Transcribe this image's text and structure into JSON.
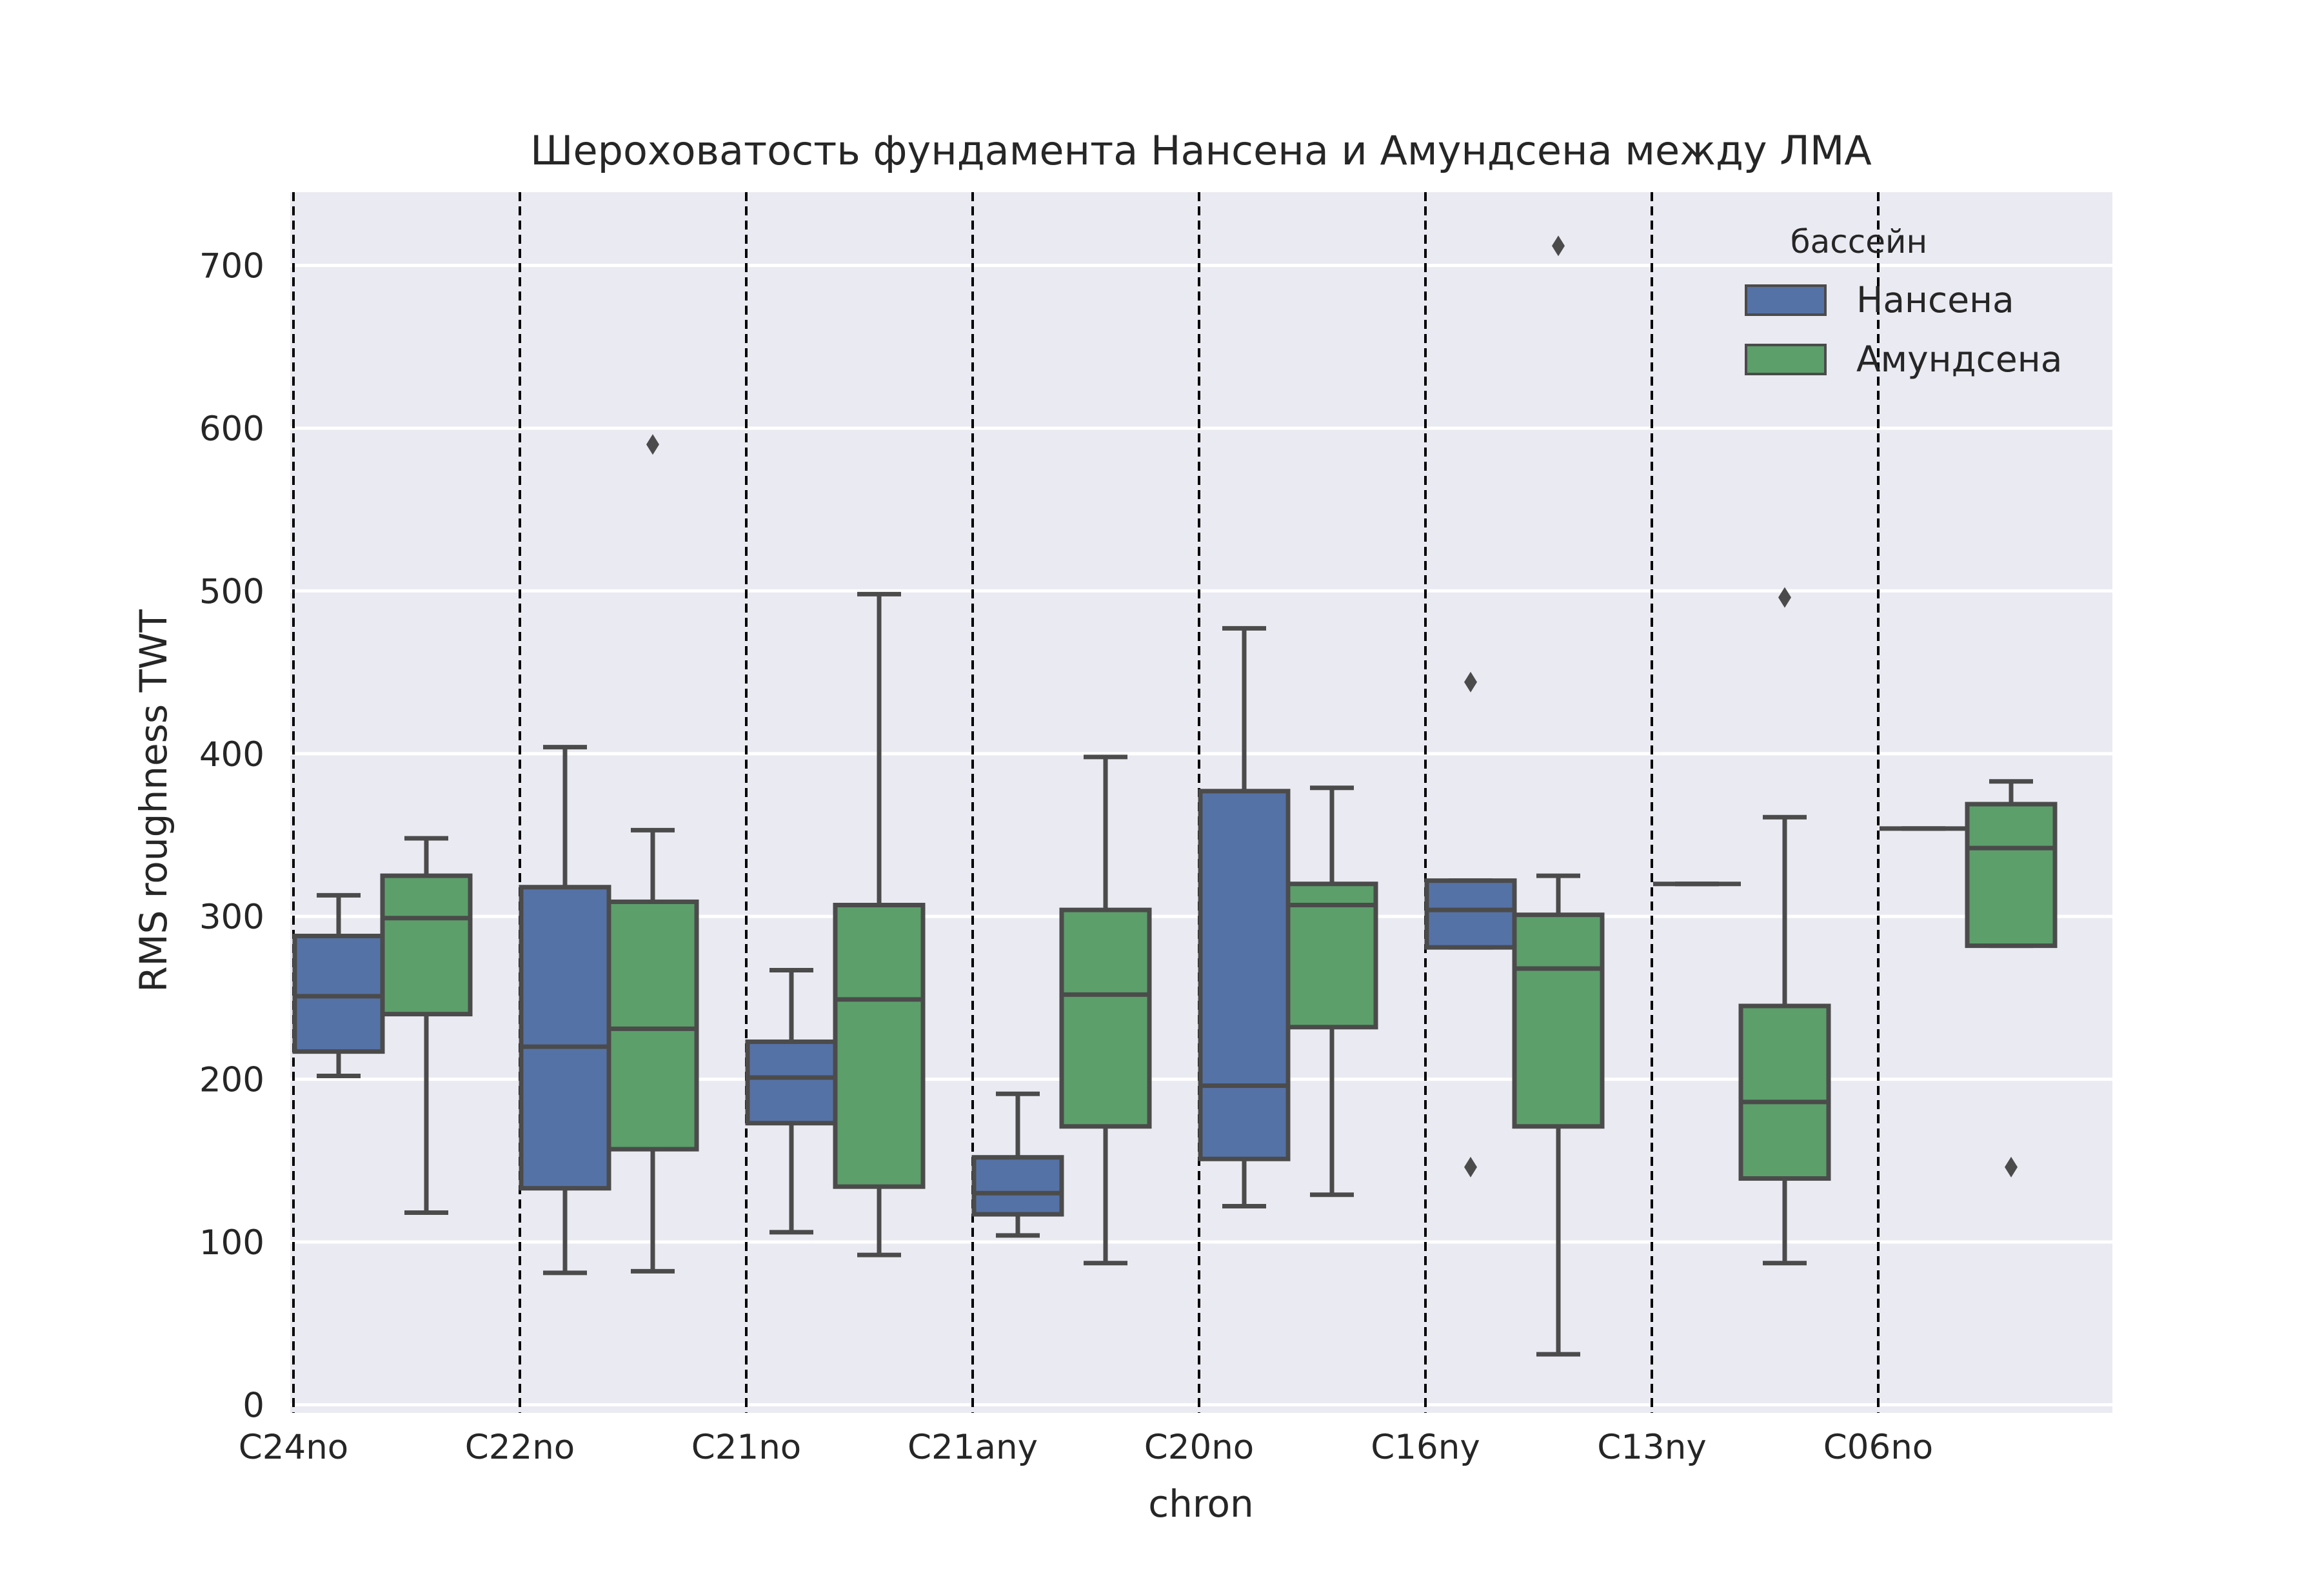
{
  "chart_data": {
    "type": "box",
    "title": "Шероховатость фундамента Нансена и Амундсена между ЛМА",
    "xlabel": "chron",
    "ylabel": "RMS roughness TWT",
    "ylim": [
      -5,
      745
    ],
    "yticks": [
      0,
      100,
      200,
      300,
      400,
      500,
      600,
      700
    ],
    "grid": true,
    "legend": {
      "title": "бассейн",
      "position": "top-right"
    },
    "colors": {
      "background": "#eaeaf2",
      "grid": "#ffffff",
      "edge": "#4b4b4b",
      "Нансена": "#5572a6",
      "Амундсена": "#5c9f6b"
    },
    "categories": [
      "C24no",
      "C22no",
      "C21no",
      "C21any",
      "C20no",
      "C16ny",
      "C13ny",
      "C06no"
    ],
    "series": [
      {
        "name": "Нансена",
        "boxes": [
          {
            "category": "C24no",
            "whislo": 202,
            "q1": 217,
            "med": 251,
            "q3": 288,
            "whishi": 313,
            "fliers": []
          },
          {
            "category": "C22no",
            "whislo": 81,
            "q1": 133,
            "med": 220,
            "q3": 318,
            "whishi": 404,
            "fliers": []
          },
          {
            "category": "C21no",
            "whislo": 106,
            "q1": 173,
            "med": 201,
            "q3": 223,
            "whishi": 267,
            "fliers": []
          },
          {
            "category": "C21any",
            "whislo": 104,
            "q1": 117,
            "med": 130,
            "q3": 152,
            "whishi": 191,
            "fliers": []
          },
          {
            "category": "C20no",
            "whislo": 122,
            "q1": 151,
            "med": 196,
            "q3": 377,
            "whishi": 477,
            "fliers": []
          },
          {
            "category": "C16ny",
            "whislo": 281,
            "q1": 281,
            "med": 304,
            "q3": 322,
            "whishi": 322,
            "fliers": [
              444,
              146
            ]
          },
          {
            "category": "C13ny",
            "whislo": 320,
            "q1": 320,
            "med": 320,
            "q3": 320,
            "whishi": 320,
            "fliers": []
          },
          {
            "category": "C06no",
            "whislo": 354,
            "q1": 354,
            "med": 354,
            "q3": 354,
            "whishi": 354,
            "fliers": []
          }
        ]
      },
      {
        "name": "Амундсена",
        "boxes": [
          {
            "category": "C24no",
            "whislo": 118,
            "q1": 240,
            "med": 299,
            "q3": 325,
            "whishi": 348,
            "fliers": []
          },
          {
            "category": "C22no",
            "whislo": 82,
            "q1": 157,
            "med": 231,
            "q3": 309,
            "whishi": 353,
            "fliers": [
              590
            ]
          },
          {
            "category": "C21no",
            "whislo": 92,
            "q1": 134,
            "med": 249,
            "q3": 307,
            "whishi": 498,
            "fliers": []
          },
          {
            "category": "C21any",
            "whislo": 87,
            "q1": 171,
            "med": 252,
            "q3": 304,
            "whishi": 398,
            "fliers": []
          },
          {
            "category": "C20no",
            "whislo": 129,
            "q1": 232,
            "med": 307,
            "q3": 320,
            "whishi": 379,
            "fliers": []
          },
          {
            "category": "C16ny",
            "whislo": 31,
            "q1": 171,
            "med": 268,
            "q3": 301,
            "whishi": 325,
            "fliers": [
              712
            ]
          },
          {
            "category": "C13ny",
            "whislo": 87,
            "q1": 139,
            "med": 186,
            "q3": 245,
            "whishi": 361,
            "fliers": [
              496
            ]
          },
          {
            "category": "C06no",
            "whislo": 282,
            "q1": 282,
            "med": 342,
            "q3": 369,
            "whishi": 383,
            "fliers": [
              146
            ]
          }
        ]
      }
    ]
  }
}
